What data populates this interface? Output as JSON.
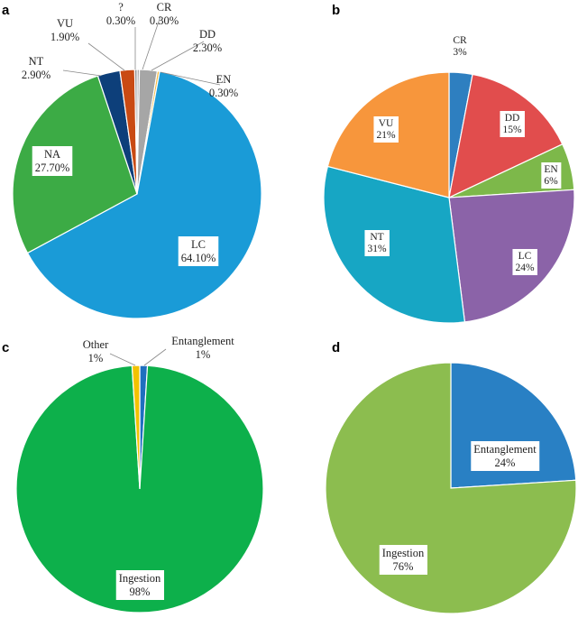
{
  "panels": [
    "a",
    "b",
    "c",
    "d"
  ],
  "chart_data": [
    {
      "panel": "a",
      "type": "pie",
      "slices": [
        {
          "name": "CR",
          "value": 0.3,
          "pct_label": "0.30%",
          "color": "#a6a6a6"
        },
        {
          "name": "DD",
          "value": 2.3,
          "pct_label": "2.30%",
          "color": "#a6a6a6"
        },
        {
          "name": "EN",
          "value": 0.3,
          "pct_label": "0.30%",
          "color": "#f5b942"
        },
        {
          "name": "LC",
          "value": 64.1,
          "pct_label": "64.10%",
          "color": "#1a9bd7"
        },
        {
          "name": "NA",
          "value": 27.7,
          "pct_label": "27.70%",
          "color": "#3cab45"
        },
        {
          "name": "NT",
          "value": 2.9,
          "pct_label": "2.90%",
          "color": "#0d3f7a"
        },
        {
          "name": "VU",
          "value": 1.9,
          "pct_label": "1.90%",
          "color": "#c94a13"
        },
        {
          "name": "?",
          "value": 0.3,
          "pct_label": "0.30%",
          "color": "#8a8a8a"
        }
      ]
    },
    {
      "panel": "b",
      "type": "pie",
      "slices": [
        {
          "name": "CR",
          "value": 3,
          "pct_label": "3%",
          "color": "#2e7fc0"
        },
        {
          "name": "DD",
          "value": 15,
          "pct_label": "15%",
          "color": "#e14d4d"
        },
        {
          "name": "EN",
          "value": 6,
          "pct_label": "6%",
          "color": "#7db84a"
        },
        {
          "name": "LC",
          "value": 24,
          "pct_label": "24%",
          "color": "#8b63a8"
        },
        {
          "name": "NT",
          "value": 31,
          "pct_label": "31%",
          "color": "#17a6c4"
        },
        {
          "name": "VU",
          "value": 21,
          "pct_label": "21%",
          "color": "#f7963c"
        }
      ]
    },
    {
      "panel": "c",
      "type": "pie",
      "slices": [
        {
          "name": "Entanglement",
          "value": 1,
          "pct_label": "1%",
          "color": "#1f6fbf"
        },
        {
          "name": "Ingestion",
          "value": 98,
          "pct_label": "98%",
          "color": "#0db04b"
        },
        {
          "name": "Other",
          "value": 1,
          "pct_label": "1%",
          "color": "#f2c200"
        }
      ]
    },
    {
      "panel": "d",
      "type": "pie",
      "slices": [
        {
          "name": "Entanglement",
          "value": 24,
          "pct_label": "24%",
          "color": "#2980c4"
        },
        {
          "name": "Ingestion",
          "value": 76,
          "pct_label": "76%",
          "color": "#8cbd4f"
        }
      ]
    }
  ]
}
